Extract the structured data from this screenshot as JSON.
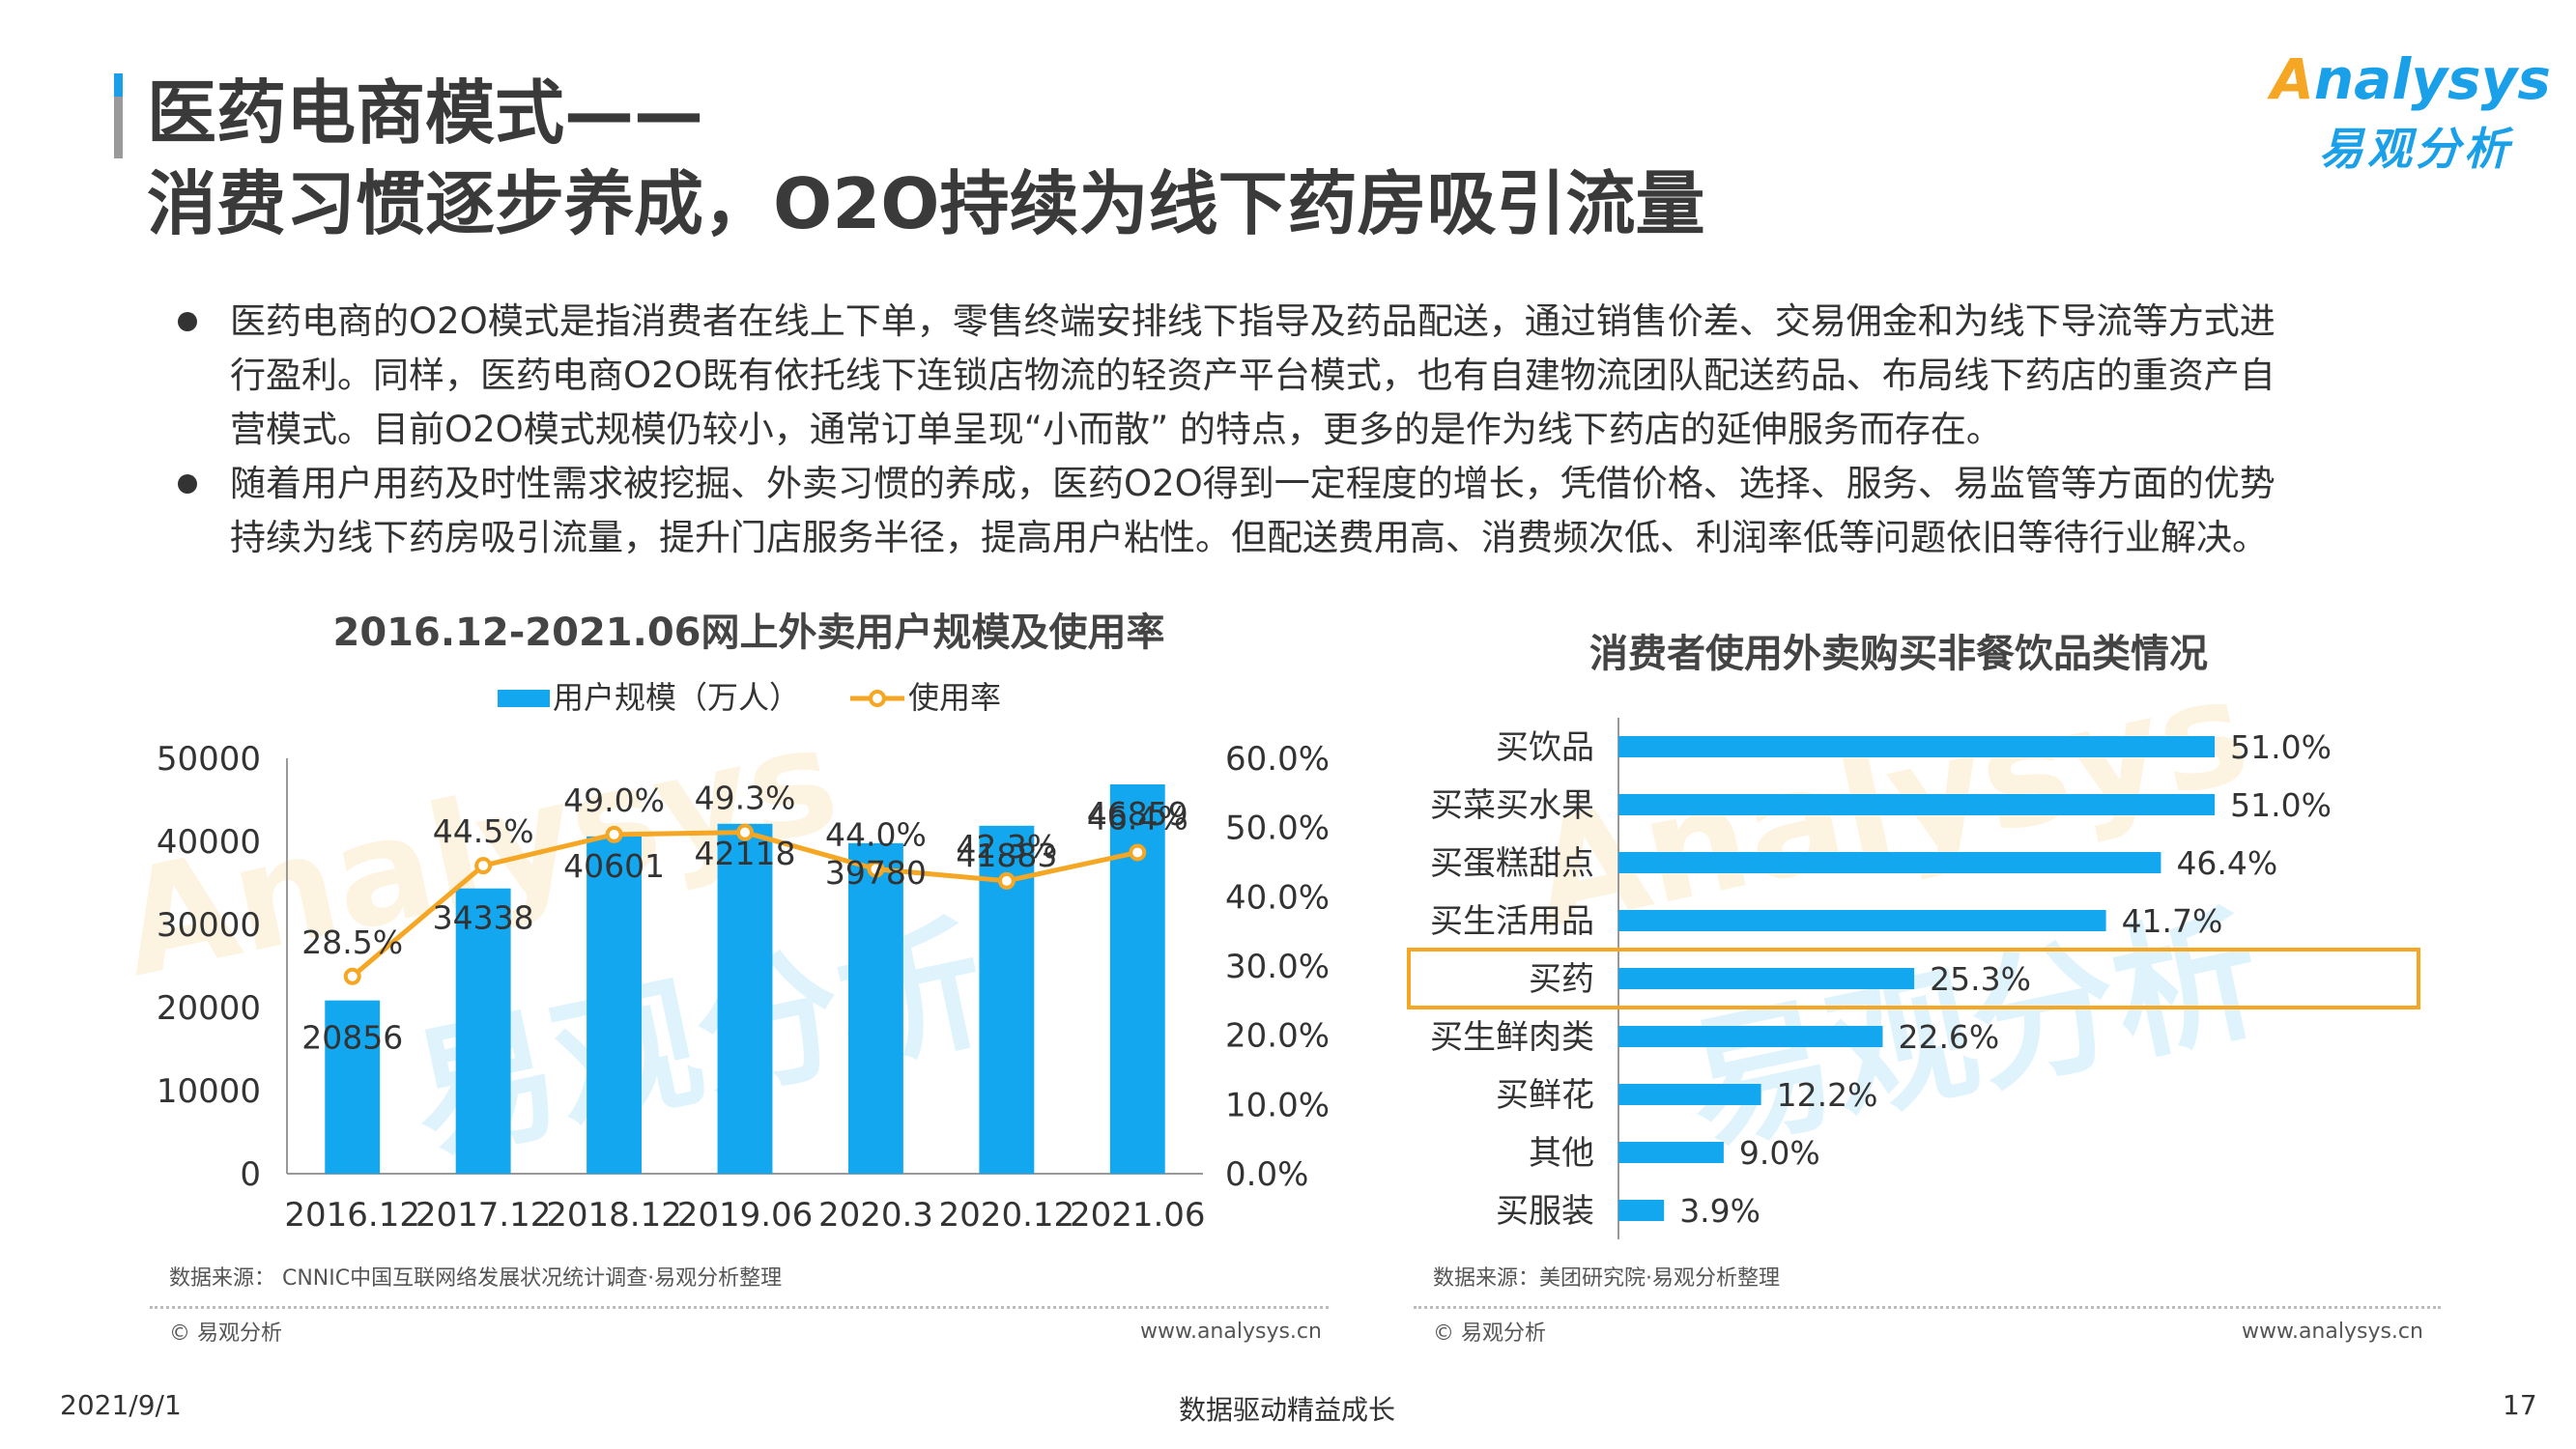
{
  "header": {
    "title_line1": "医药电商模式——",
    "title_line2": "消费习惯逐步养成，O2O持续为线下药房吸引流量"
  },
  "logo": {
    "en": "nalysys",
    "en_o": "A",
    "cn": "易观分析"
  },
  "bullets": [
    {
      "lines": [
        "医药电商的O2O模式是指消费者在线上下单，零售终端安排线下指导及药品配送，通过销售价差、交易佣金和为线下导流等方式进",
        "行盈利。同样，医药电商O2O既有依托线下连锁店物流的轻资产平台模式，也有自建物流团队配送药品、布局线下药店的重资产自",
        "营模式。目前O2O模式规模仍较小，通常订单呈现“小而散” 的特点，更多的是作为线下药店的延伸服务而存在。"
      ]
    },
    {
      "lines": [
        "随着用户用药及时性需求被挖掘、外卖习惯的养成，医药O2O得到一定程度的增长，凭借价格、选择、服务、易监管等方面的优势",
        "持续为线下药房吸引流量，提升门店服务半径，提高用户粘性。但配送费用高、消费频次低、利润率低等问题依旧等待行业解决。"
      ]
    }
  ],
  "chart_data": [
    {
      "type": "bar",
      "title": "2016.12-2021.06网上外卖用户规模及使用率",
      "categories": [
        "2016.12",
        "2017.12",
        "2018.12",
        "2019.06",
        "2020.3",
        "2020.12",
        "2021.06"
      ],
      "series": [
        {
          "name": "用户规模（万人）",
          "type": "bar",
          "axis": "left",
          "values": [
            20856,
            34338,
            40601,
            42118,
            39780,
            41883,
            46859
          ],
          "labels": [
            "20856",
            "34338",
            "40601",
            "42118",
            "39780",
            "41883",
            "46859"
          ]
        },
        {
          "name": "使用率",
          "type": "line",
          "axis": "right",
          "values": [
            28.5,
            44.5,
            49.0,
            49.3,
            44.0,
            42.3,
            46.4
          ],
          "labels": [
            "28.5%",
            "44.5%",
            "49.0%",
            "49.3%",
            "44.0%",
            "42.3%",
            "46.4%"
          ]
        }
      ],
      "ylim": [
        0,
        50000
      ],
      "yticks": [
        "0",
        "10000",
        "20000",
        "30000",
        "40000",
        "50000"
      ],
      "y2lim": [
        0,
        60
      ],
      "y2ticks": [
        "0.0%",
        "10.0%",
        "20.0%",
        "30.0%",
        "40.0%",
        "50.0%",
        "60.0%"
      ],
      "legend": "top",
      "grid": false,
      "colors": {
        "bar": "#12a7ef",
        "line": "#f5a623"
      },
      "source": "数据来源： CNNIC中国互联网络发展状况统计调查·易观分析整理"
    },
    {
      "type": "bar",
      "orientation": "horizontal",
      "title": "消费者使用外卖购买非餐饮品类情况",
      "categories": [
        "买饮品",
        "买菜买水果",
        "买蛋糕甜点",
        "买生活用品",
        "买药",
        "买生鲜肉类",
        "买鲜花",
        "其他",
        "买服装"
      ],
      "values": [
        51.0,
        51.0,
        46.4,
        41.7,
        25.3,
        22.6,
        12.2,
        9.0,
        3.9
      ],
      "labels": [
        "51.0%",
        "51.0%",
        "46.4%",
        "41.7%",
        "25.3%",
        "22.6%",
        "12.2%",
        "9.0%",
        "3.9%"
      ],
      "xlim": [
        0,
        60
      ],
      "highlight": "买药",
      "grid": false,
      "colors": {
        "bar": "#12a7ef",
        "highlight_box": "#f5a623"
      },
      "source": "数据来源：美团研究院·易观分析整理"
    }
  ],
  "panel_footer": {
    "copyright": "© 易观分析",
    "url": "www.analysys.cn"
  },
  "watermark": {
    "en": "Analysys",
    "cn": "易观分析"
  },
  "footer": {
    "date": "2021/9/1",
    "slogan": "数据驱动精益成长",
    "page": "17"
  }
}
